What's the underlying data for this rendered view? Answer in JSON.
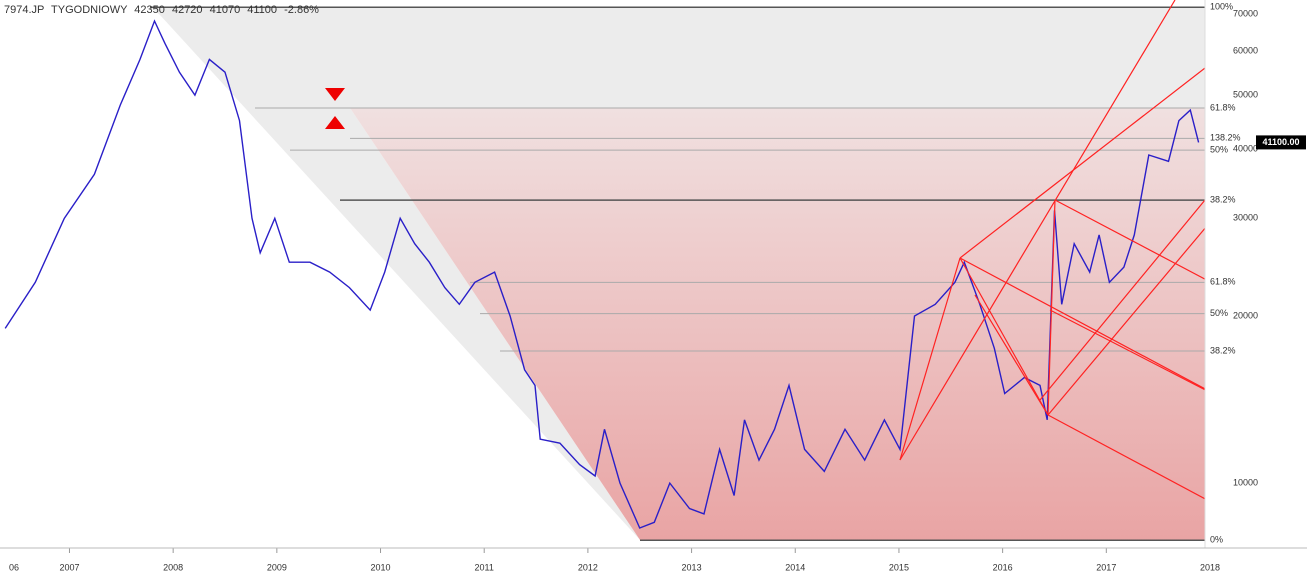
{
  "header": {
    "symbol": "7974.JP",
    "interval": "TYGODNIOWY",
    "open": "42350",
    "high": "42720",
    "low": "41070",
    "close": "41100",
    "change": "-2.86%"
  },
  "chart_data": {
    "type": "line",
    "log_scale": true,
    "color": "#2a1fc8",
    "x": [
      2006.38,
      2006.67,
      2006.95,
      2007.24,
      2007.49,
      2007.68,
      2007.82,
      2007.92,
      2008.06,
      2008.21,
      2008.35,
      2008.5,
      2008.64,
      2008.76,
      2008.84,
      2008.98,
      2009.12,
      2009.32,
      2009.51,
      2009.7,
      2009.9,
      2010.04,
      2010.19,
      2010.33,
      2010.47,
      2010.62,
      2010.76,
      2010.91,
      2011.1,
      2011.25,
      2011.39,
      2011.49,
      2011.54,
      2011.73,
      2011.92,
      2012.07,
      2012.16,
      2012.31,
      2012.5,
      2012.64,
      2012.79,
      2012.98,
      2013.12,
      2013.27,
      2013.41,
      2013.51,
      2013.65,
      2013.8,
      2013.94,
      2014.09,
      2014.28,
      2014.48,
      2014.67,
      2014.86,
      2015.01,
      2015.15,
      2015.35,
      2015.54,
      2015.63,
      2015.78,
      2015.92,
      2016.02,
      2016.21,
      2016.36,
      2016.43,
      2016.5,
      2016.57,
      2016.69,
      2016.84,
      2016.93,
      2017.03,
      2017.17,
      2017.27,
      2017.41,
      2017.6,
      2017.7,
      2017.81,
      2017.89
    ],
    "values": [
      19000,
      23000,
      30000,
      36000,
      48000,
      58000,
      68000,
      62000,
      55000,
      50000,
      58000,
      55000,
      45000,
      30000,
      26000,
      30000,
      25000,
      25000,
      24000,
      22500,
      20500,
      24000,
      30000,
      27000,
      25000,
      22500,
      21000,
      23000,
      24000,
      20000,
      16000,
      15000,
      12000,
      11800,
      10800,
      10300,
      12500,
      10000,
      8300,
      8500,
      10000,
      9000,
      8800,
      11500,
      9500,
      13000,
      11000,
      12500,
      15000,
      11500,
      10500,
      12500,
      11000,
      13000,
      11500,
      20000,
      21000,
      23000,
      25000,
      21000,
      17500,
      14500,
      15500,
      15000,
      13000,
      31000,
      21000,
      27000,
      24000,
      28000,
      23000,
      24500,
      28000,
      39000,
      38000,
      45000,
      47000,
      41100
    ],
    "xlim": [
      2006.33,
      2018
    ],
    "ylim": [
      7640,
      74200
    ],
    "xticks": [
      {
        "value": 2006,
        "label": "06"
      },
      2007,
      2008,
      2009,
      2010,
      2011,
      2012,
      2013,
      2014,
      2015,
      2016,
      2017,
      2018
    ],
    "yticks": [
      10000,
      20000,
      30000,
      40000,
      50000,
      60000,
      70000
    ],
    "last_price": 41100,
    "last_price_label": "41100.00",
    "fib_levels": [
      {
        "label": "100%",
        "value": 72000
      },
      {
        "label": "61.8%",
        "value": 47400
      },
      {
        "label": "138.2%",
        "value": 41800
      },
      {
        "label": "50%",
        "value": 39800
      },
      {
        "label": "38.2%",
        "value": 32350
      },
      {
        "label": "61.8%",
        "value": 23000
      },
      {
        "label": "50%",
        "value": 20200
      },
      {
        "label": "38.2%",
        "value": 17300
      },
      {
        "label": "0%",
        "value": 7890
      }
    ]
  }
}
